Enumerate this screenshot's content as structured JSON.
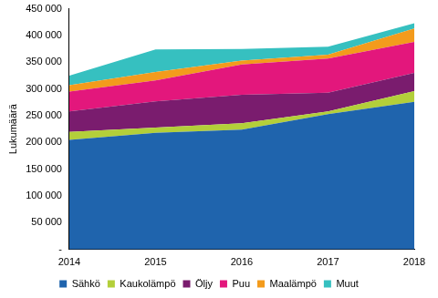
{
  "chart_data": {
    "type": "area",
    "stacked": true,
    "grid": false,
    "legend": "bottom",
    "y_label": "Lukumäärä",
    "categories": [
      "2014",
      "2015",
      "2016",
      "2017",
      "2018"
    ],
    "ylim": [
      0,
      450000
    ],
    "yticks": [
      {
        "value": 0,
        "label": "-"
      },
      {
        "value": 50000,
        "label": "50 000"
      },
      {
        "value": 100000,
        "label": "100 000"
      },
      {
        "value": 150000,
        "label": "150 000"
      },
      {
        "value": 200000,
        "label": "200 000"
      },
      {
        "value": 250000,
        "label": "250 000"
      },
      {
        "value": 300000,
        "label": "300 000"
      },
      {
        "value": 350000,
        "label": "350 000"
      },
      {
        "value": 400000,
        "label": "400 000"
      },
      {
        "value": 450000,
        "label": "450 000"
      }
    ],
    "series": [
      {
        "name": "Sähkö",
        "color": "#1f64ad",
        "values": [
          205000,
          218000,
          224000,
          253000,
          276000
        ]
      },
      {
        "name": "Kaukolämpö",
        "color": "#b3cf3a",
        "values": [
          15000,
          10000,
          12000,
          5000,
          20000
        ]
      },
      {
        "name": "Öljy",
        "color": "#7a1c6e",
        "values": [
          38000,
          49000,
          53000,
          35000,
          34000
        ]
      },
      {
        "name": "Puu",
        "color": "#e3177c",
        "values": [
          37000,
          39000,
          57000,
          64000,
          58000
        ]
      },
      {
        "name": "Maalämpö",
        "color": "#f39b1c",
        "values": [
          12000,
          16000,
          7000,
          7000,
          25000
        ]
      },
      {
        "name": "Muut",
        "color": "#36c0c0",
        "values": [
          18000,
          42000,
          22000,
          15000,
          10000
        ]
      }
    ]
  }
}
